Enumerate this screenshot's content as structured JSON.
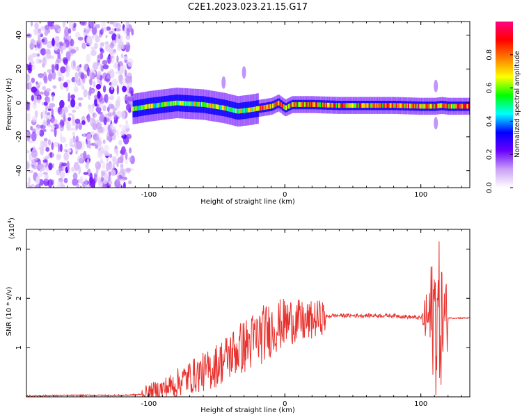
{
  "title": "C2E1.2023.023.21.15.G17",
  "chart_data": [
    {
      "type": "heatmap",
      "xlabel": "Height of straight line (km)",
      "ylabel": "Frequency (Hz)",
      "xlim": [
        -190,
        136
      ],
      "ylim": [
        -50,
        48
      ],
      "x_ticks": [
        -100,
        0,
        100
      ],
      "x_tick_labels": [
        "-100",
        "0",
        "100"
      ],
      "y_ticks": [
        -40,
        -20,
        0,
        20,
        40
      ],
      "y_tick_labels": [
        "-40",
        "-20",
        "0",
        "20",
        "40"
      ],
      "colorbar": {
        "label": "Normalized spectral amplitude",
        "range": [
          0.0,
          1.0
        ],
        "ticks": [
          0.0,
          0.2,
          0.4,
          0.6,
          0.8
        ],
        "tick_labels": [
          "0.0",
          "0.2",
          "0.4",
          "0.6",
          "0.8"
        ],
        "colormap": [
          "#ffffff",
          "#c9a0f5",
          "#6a00ff",
          "#0000ff",
          "#00ffff",
          "#00ff00",
          "#ffff00",
          "#ff8000",
          "#ff0000",
          "#ff0080"
        ]
      },
      "ridge_frequency": {
        "x": [
          -115,
          -100,
          -80,
          -60,
          -45,
          -35,
          -25,
          -18,
          -10,
          -5,
          0,
          5,
          20,
          40,
          60,
          80,
          100,
          110,
          115,
          120,
          136
        ],
        "y": [
          -4,
          -2,
          0,
          -1,
          -3,
          -5,
          -4,
          -3,
          -2,
          0,
          -3,
          -1,
          -1,
          -1.5,
          -1.5,
          -1.5,
          -2,
          -2,
          -1.5,
          -2,
          -2
        ]
      },
      "noise_region_x": [
        -190,
        -112
      ]
    },
    {
      "type": "line",
      "xlabel": "Height of straight line (km)",
      "ylabel": "SNR (10 * v/v)",
      "y_exponent_label": "(x10",
      "y_exponent_sup": "4",
      "y_exponent_close": ")",
      "xlim": [
        -190,
        136
      ],
      "ylim": [
        0,
        3.4
      ],
      "x_ticks": [
        -100,
        0,
        100
      ],
      "x_tick_labels": [
        "-100",
        "0",
        "100"
      ],
      "y_ticks": [
        1,
        2,
        3
      ],
      "y_tick_labels": [
        "1",
        "2",
        "3"
      ],
      "line_color": "#e8322e",
      "series": [
        {
          "x": [
            -190,
            -150,
            -120,
            -105,
            -95,
            -85,
            -75,
            -65,
            -55,
            -45,
            -35,
            -25,
            -15,
            -5,
            5,
            15,
            25,
            35,
            50,
            80,
            100,
            105,
            110,
            113,
            116,
            120,
            136
          ],
          "y": [
            0.02,
            0.03,
            0.03,
            0.05,
            0.12,
            0.2,
            0.35,
            0.45,
            0.55,
            0.75,
            0.95,
            1.1,
            1.3,
            1.45,
            1.55,
            1.5,
            1.6,
            1.65,
            1.65,
            1.65,
            1.6,
            1.55,
            1.7,
            1.6,
            1.55,
            1.6,
            1.6
          ]
        }
      ]
    }
  ]
}
